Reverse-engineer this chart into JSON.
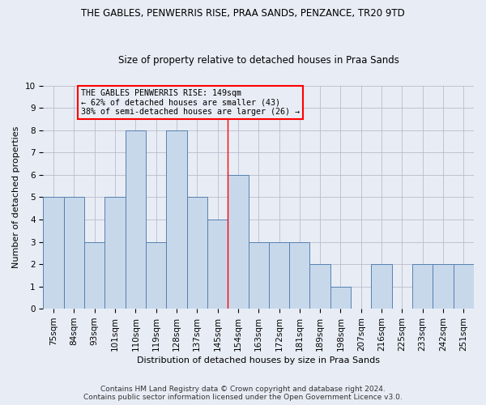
{
  "title": "THE GABLES, PENWERRIS RISE, PRAA SANDS, PENZANCE, TR20 9TD",
  "subtitle": "Size of property relative to detached houses in Praa Sands",
  "xlabel": "Distribution of detached houses by size in Praa Sands",
  "ylabel": "Number of detached properties",
  "footer": "Contains HM Land Registry data © Crown copyright and database right 2024.\nContains public sector information licensed under the Open Government Licence v3.0.",
  "categories": [
    "75sqm",
    "84sqm",
    "93sqm",
    "101sqm",
    "110sqm",
    "119sqm",
    "128sqm",
    "137sqm",
    "145sqm",
    "154sqm",
    "163sqm",
    "172sqm",
    "181sqm",
    "189sqm",
    "198sqm",
    "207sqm",
    "216sqm",
    "225sqm",
    "233sqm",
    "242sqm",
    "251sqm"
  ],
  "values": [
    5,
    5,
    3,
    5,
    8,
    3,
    8,
    5,
    4,
    6,
    3,
    3,
    3,
    2,
    1,
    0,
    2,
    0,
    2,
    2,
    2
  ],
  "bar_color": "#c8d8eb",
  "bar_edge_color": "#5580b0",
  "grid_color": "#bbbbcc",
  "bg_color": "#e8edf5",
  "vline_x": 8.5,
  "vline_color": "red",
  "annotation_text": "THE GABLES PENWERRIS RISE: 149sqm\n← 62% of detached houses are smaller (43)\n38% of semi-detached houses are larger (26) →",
  "annotation_box_color": "red",
  "ylim": [
    0,
    10
  ],
  "yticks": [
    0,
    1,
    2,
    3,
    4,
    5,
    6,
    7,
    8,
    9,
    10
  ],
  "title_fontsize": 8.5,
  "subtitle_fontsize": 8.5,
  "ylabel_fontsize": 8,
  "xlabel_fontsize": 8,
  "tick_fontsize": 7.5,
  "ann_fontsize": 7.2,
  "footer_fontsize": 6.5
}
